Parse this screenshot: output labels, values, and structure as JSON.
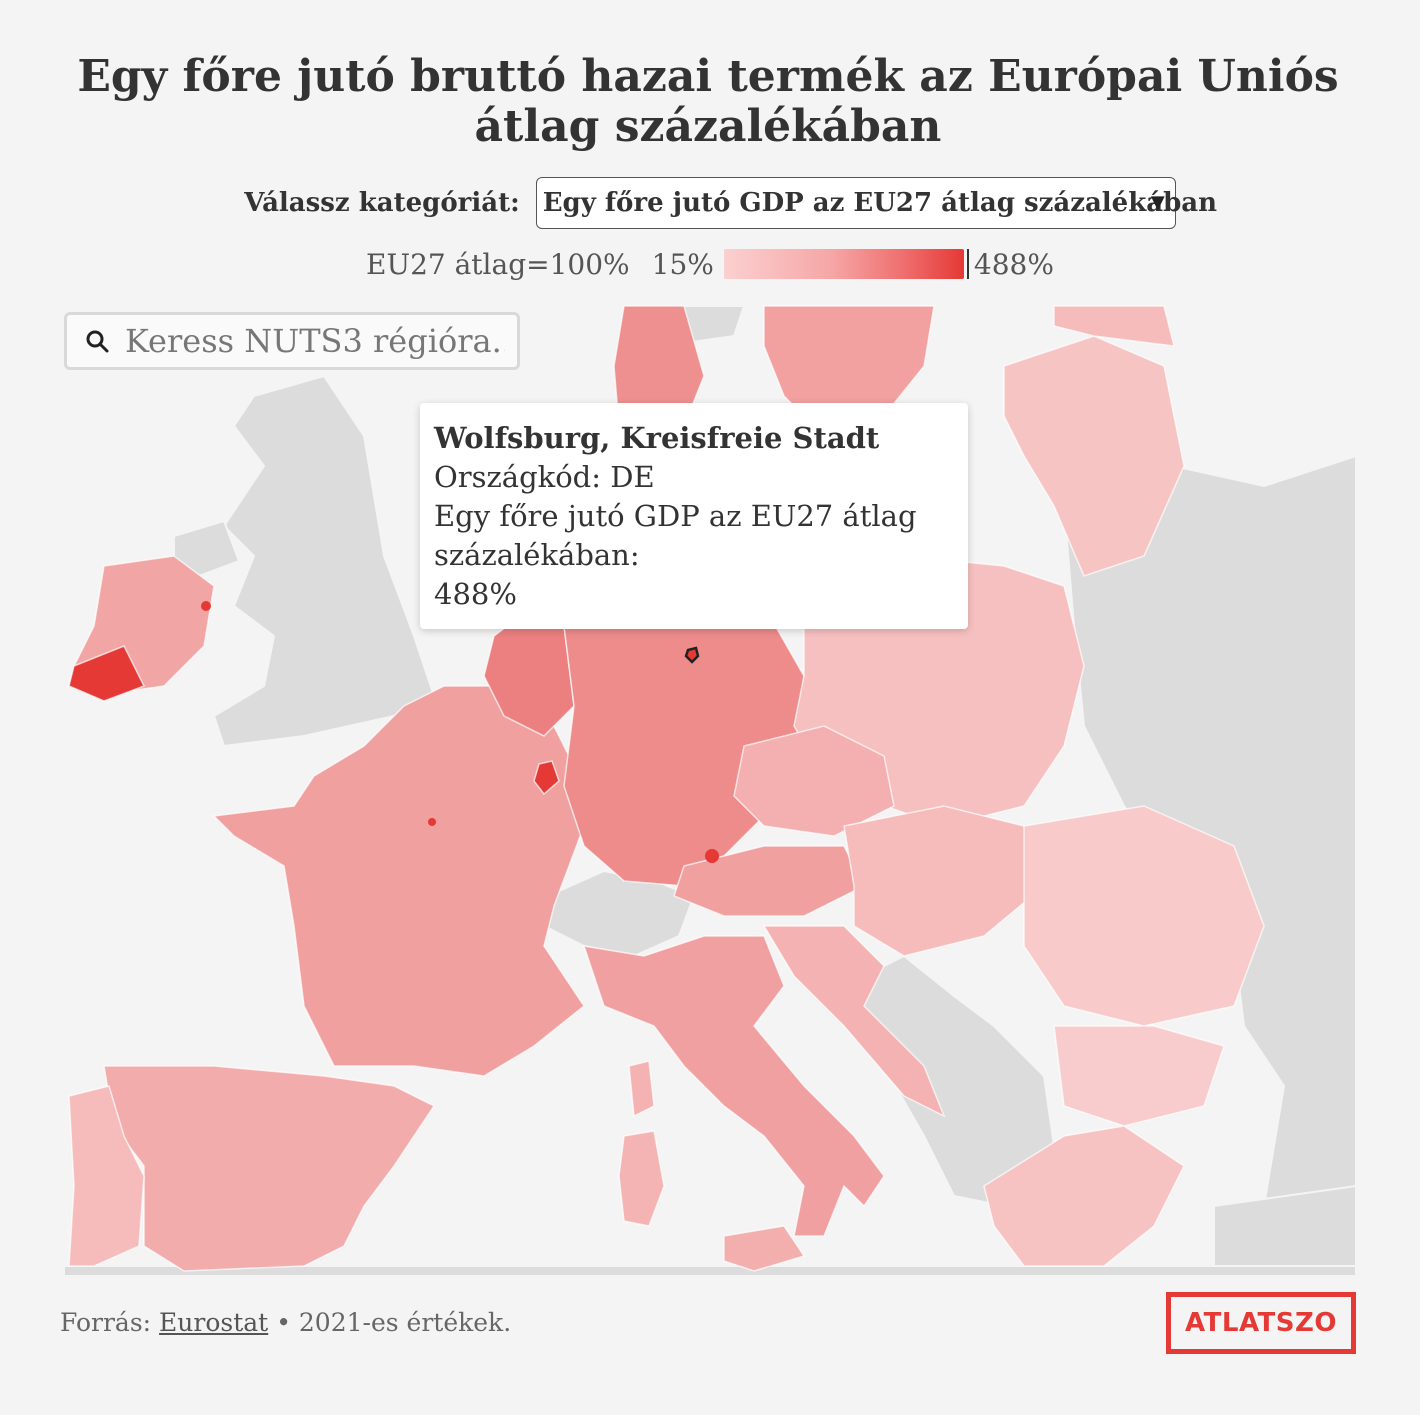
{
  "title": "Egy főre jutó bruttó hazai termék az Európai Uniós átlag százalékában",
  "controls": {
    "label": "Válassz kategóriát:",
    "selected": "Egy főre jutó GDP az EU27 átlag százalékában"
  },
  "legend": {
    "average": "EU27 átlag=100%",
    "min": "15%",
    "max": "488%"
  },
  "search": {
    "placeholder": "Keress NUTS3 régióra.."
  },
  "tooltip": {
    "name": "Wolfsburg, Kreisfreie Stadt",
    "country_line": "Országkód: DE",
    "metric_line": "Egy főre jutó GDP az EU27 átlag százalékában:",
    "value": "488%"
  },
  "footer": {
    "prefix": "Forrás:",
    "source": "Eurostat",
    "suffix": "• 2021-es értékek."
  },
  "logo": "ATLATSZO",
  "colors": {
    "background": "#f4f4f4",
    "no_data": "#dcdcdc",
    "scale_low": "#fbd0d0",
    "scale_mid": "#f4a7a7",
    "scale_high": "#e53935",
    "brand": "#e53935"
  },
  "icons": [
    "search-icon",
    "chevron-down-icon"
  ]
}
